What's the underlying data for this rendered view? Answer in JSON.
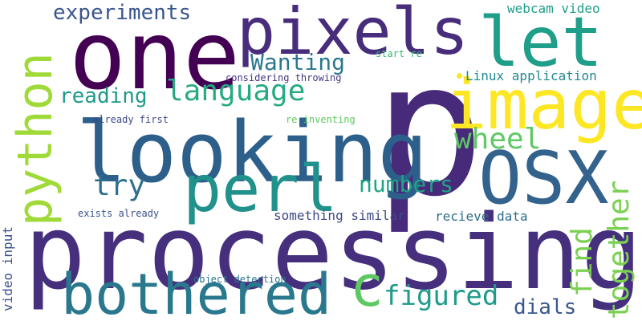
{
  "wordcloud": {
    "words": [
      {
        "text": "p",
        "color": "#472a7a"
      },
      {
        "text": "processing",
        "color": "#46307e"
      },
      {
        "text": "one",
        "color": "#440154"
      },
      {
        "text": "pixels",
        "color": "#472d7b"
      },
      {
        "text": "looking",
        "color": "#2c5f8a"
      },
      {
        "text": "python",
        "color": "#a0da39"
      },
      {
        "text": "image",
        "color": "#fde725"
      },
      {
        "text": "let",
        "color": "#1f9e89"
      },
      {
        "text": "OSX",
        "color": "#33638d"
      },
      {
        "text": "perl",
        "color": "#21918c"
      },
      {
        "text": "bothered",
        "color": "#2a788e"
      },
      {
        "text": "c",
        "color": "#5ec962"
      },
      {
        "text": "language",
        "color": "#25ab82"
      },
      {
        "text": "Wanting",
        "color": "#2a788e"
      },
      {
        "text": "experiments",
        "color": "#39568c"
      },
      {
        "text": "reading",
        "color": "#1f9a8a"
      },
      {
        "text": "wheel",
        "color": "#5ec962"
      },
      {
        "text": "try",
        "color": "#2d708e"
      },
      {
        "text": "numbers",
        "color": "#20a486"
      },
      {
        "text": "together",
        "color": "#7ad151"
      },
      {
        "text": "find",
        "color": "#7ad151"
      },
      {
        "text": "figured",
        "color": "#1e9b8a"
      },
      {
        "text": "dials",
        "color": "#38588c"
      },
      {
        "text": "video input",
        "color": "#3b518b"
      },
      {
        "text": "webcam video",
        "color": "#1f9e89"
      },
      {
        "text": "start re",
        "color": "#35b779"
      },
      {
        "text": "considering throwing",
        "color": "#453581"
      },
      {
        "text": "Linux application",
        "color": "#23888e"
      },
      {
        "text": "already first",
        "color": "#3e4a89"
      },
      {
        "text": "re inventing",
        "color": "#5ec962"
      },
      {
        "text": "something similar",
        "color": "#3e4a89"
      },
      {
        "text": "recieve data",
        "color": "#2e6e8e"
      },
      {
        "text": "exists already",
        "color": "#3b528b"
      },
      {
        "text": "object detection",
        "color": "#2a768e"
      }
    ],
    "dot_color": "#fde725"
  }
}
